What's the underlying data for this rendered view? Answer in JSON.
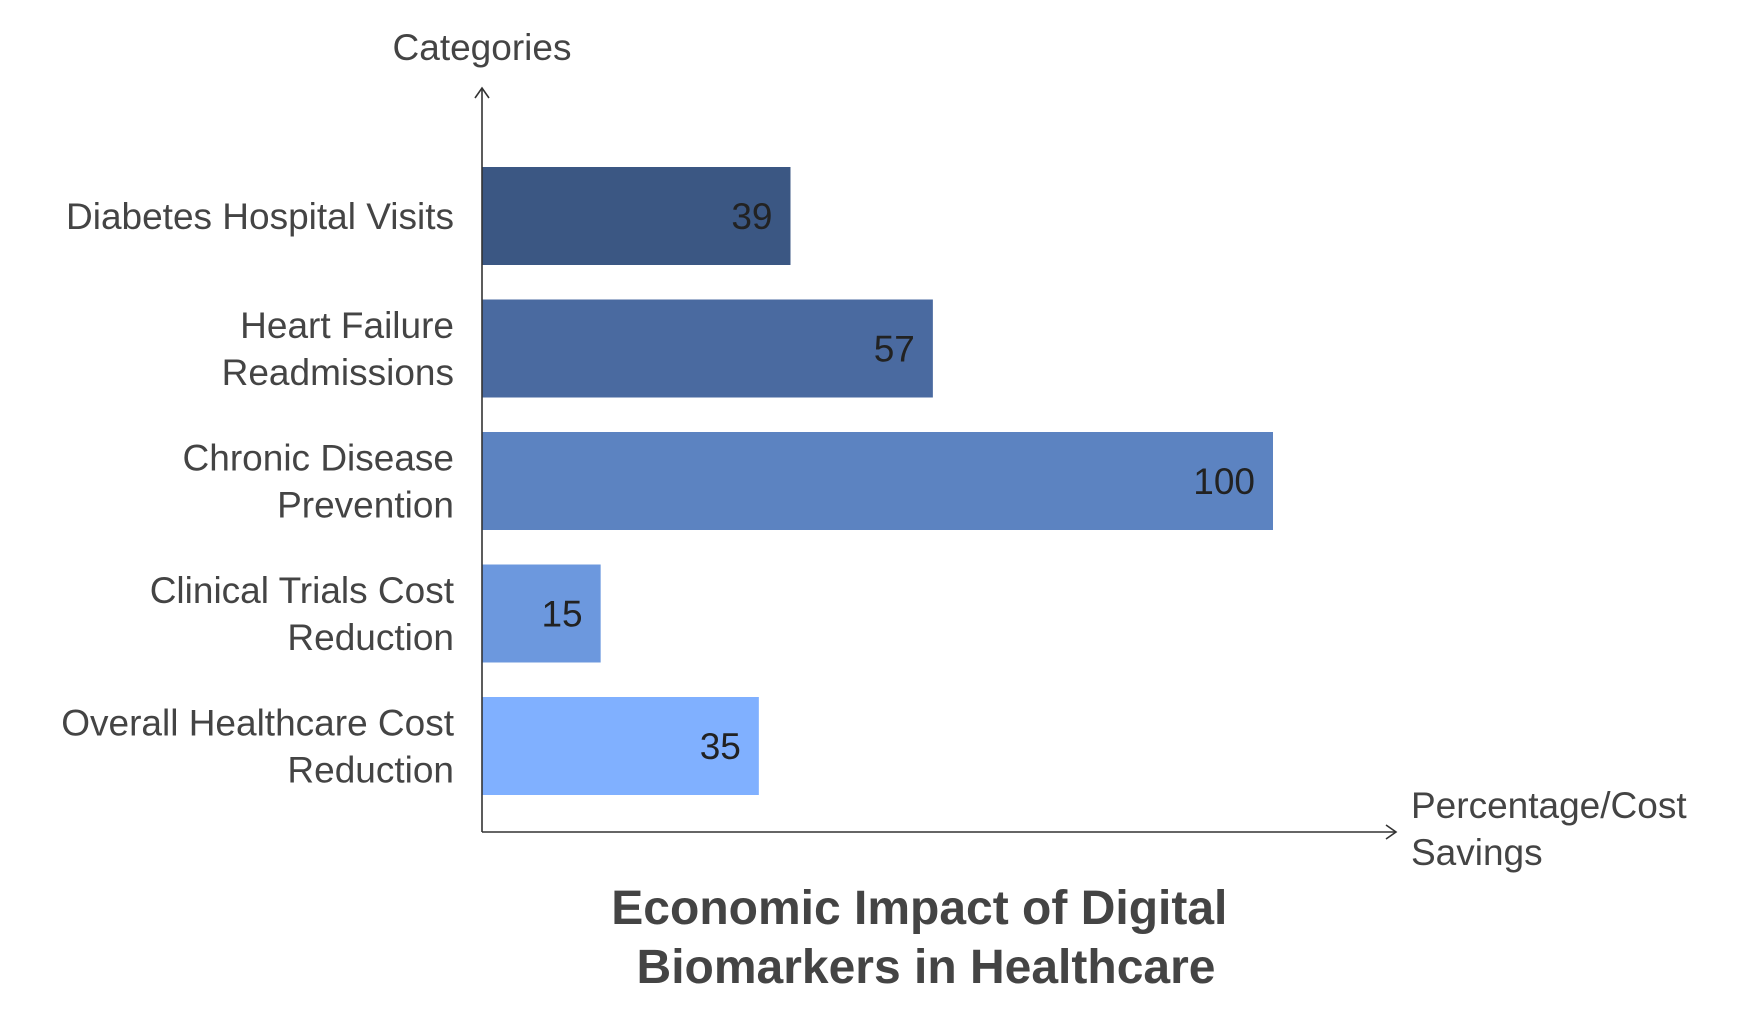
{
  "chart_data": {
    "type": "bar",
    "orientation": "horizontal",
    "title": "Economic Impact of Digital Biomarkers in Healthcare",
    "title_lines": [
      "Economic Impact of Digital",
      "Biomarkers in Healthcare"
    ],
    "ylabel": "Categories",
    "xlabel": "Percentage/Cost Savings",
    "xlabel_lines": [
      "Percentage/Cost",
      "Savings"
    ],
    "categories": [
      "Diabetes Hospital Visits",
      "Heart Failure Readmissions",
      "Chronic Disease Prevention",
      "Clinical Trials Cost Reduction",
      "Overall Healthcare Cost Reduction"
    ],
    "category_lines": [
      [
        "Diabetes Hospital Visits"
      ],
      [
        "Heart Failure",
        "Readmissions"
      ],
      [
        "Chronic Disease",
        "Prevention"
      ],
      [
        "Clinical Trials Cost",
        "Reduction"
      ],
      [
        "Overall Healthcare Cost",
        "Reduction"
      ]
    ],
    "values": [
      39,
      57,
      100,
      15,
      35
    ],
    "bar_colors": [
      "#3b5783",
      "#4a6aa0",
      "#5c83c1",
      "#6c98de",
      "#80b0ff"
    ],
    "xlim": [
      0,
      100
    ],
    "grid": false,
    "legend": "none",
    "data_labels": true
  },
  "colors": {
    "axis": "#333333",
    "text": "#444444",
    "value_text": "#222222",
    "background": "#ffffff"
  }
}
